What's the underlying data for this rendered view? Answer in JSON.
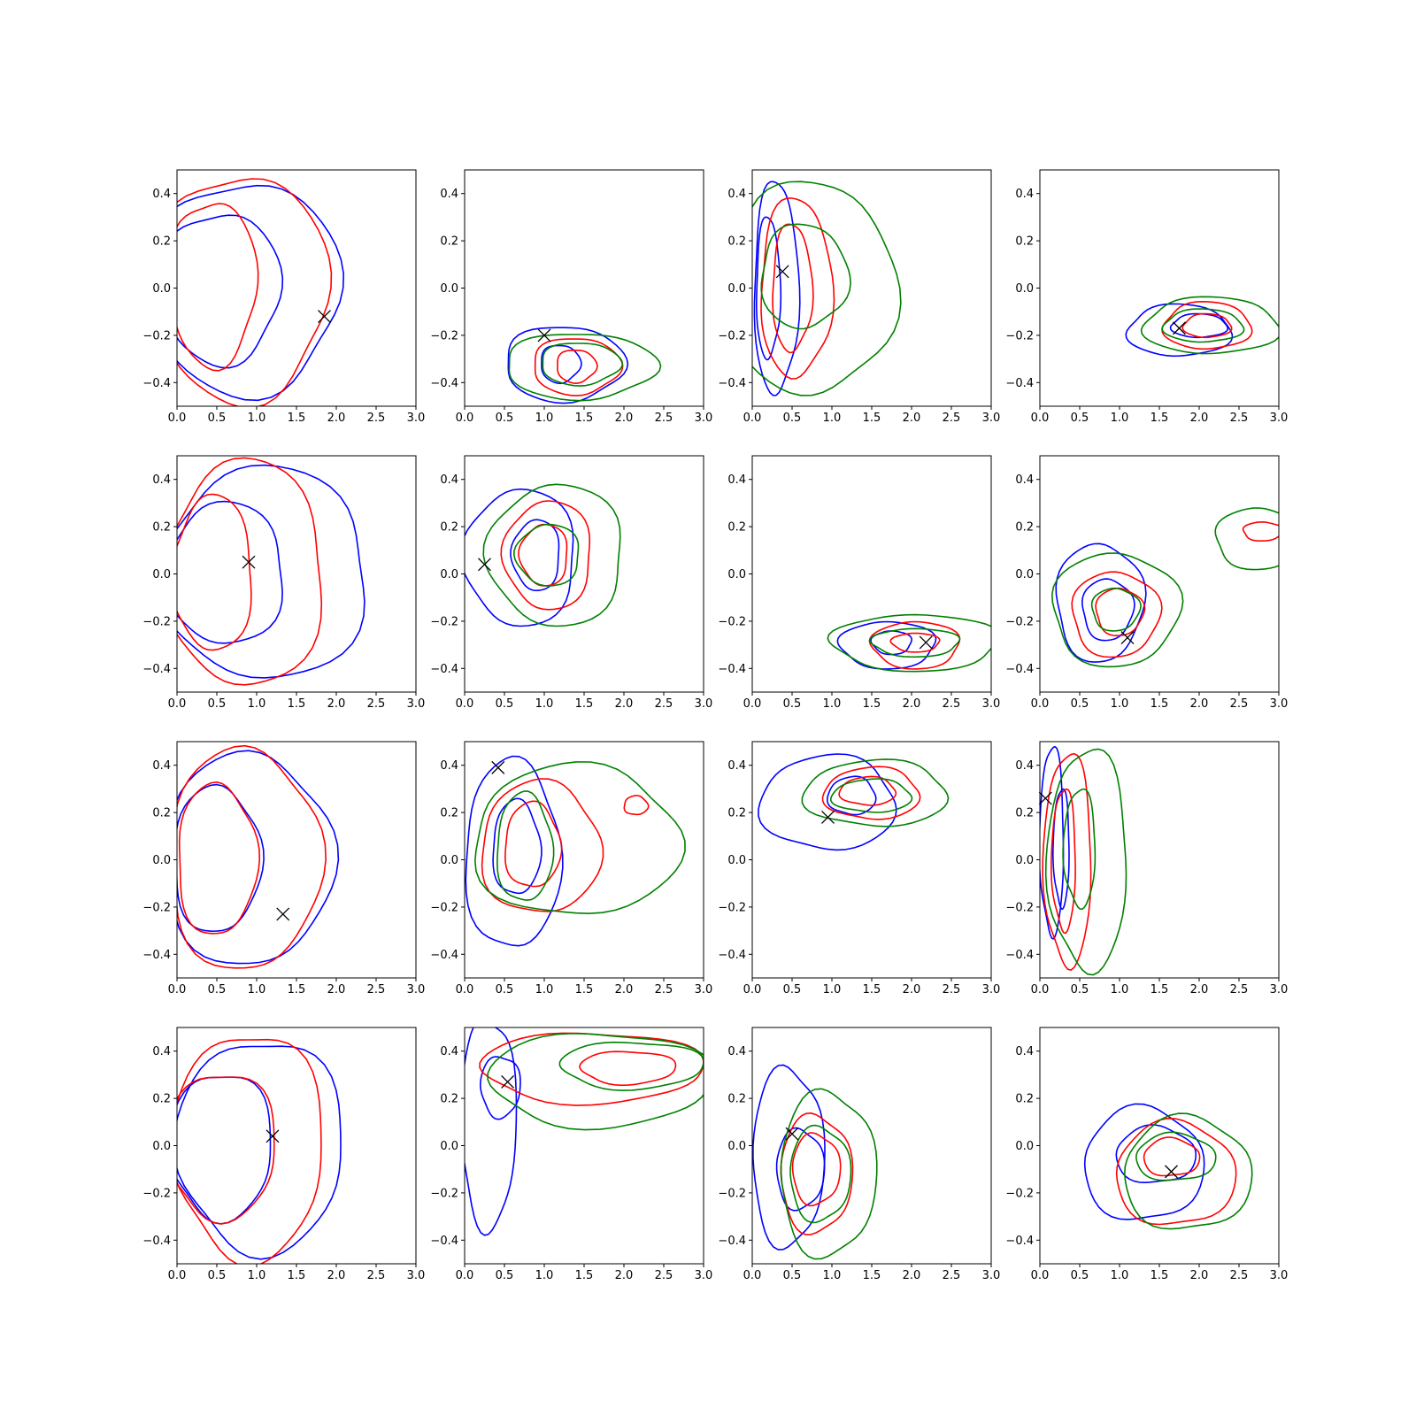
{
  "chart_data": {
    "type": "contour",
    "layout": "4x4 grid of density contour panels with an X marker in each",
    "xlim": [
      0.0,
      3.0
    ],
    "ylim": [
      -0.5,
      0.5
    ],
    "x_ticks": [
      "0.0",
      "0.5",
      "1.0",
      "1.5",
      "2.0",
      "2.5",
      "3.0"
    ],
    "y_ticks": [
      "0.4",
      "0.2",
      "0.0",
      "−0.2",
      "−0.4"
    ],
    "x_tick_values": [
      0,
      0.5,
      1,
      1.5,
      2,
      2.5,
      3
    ],
    "y_tick_values": [
      0.4,
      0.2,
      0,
      -0.2,
      -0.4
    ],
    "colors": {
      "blue": "#0000ff",
      "red": "#ff0000",
      "green": "#008000",
      "marker": "#000000"
    },
    "panels": [
      {
        "row": 1,
        "col": 1,
        "marker": [
          1.85,
          -0.12
        ],
        "contours": [
          {
            "color": "blue",
            "cx": 0.55,
            "cy": 0.0,
            "rx": 0.75,
            "ry": 0.32
          },
          {
            "color": "blue",
            "cx": 0.85,
            "cy": 0.0,
            "rx": 1.2,
            "ry": 0.45
          },
          {
            "color": "red",
            "cx": 0.45,
            "cy": 0.02,
            "rx": 0.55,
            "ry": 0.35
          },
          {
            "color": "red",
            "cx": 0.8,
            "cy": 0.0,
            "rx": 1.1,
            "ry": 0.48
          }
        ]
      },
      {
        "row": 1,
        "col": 2,
        "marker": [
          1.0,
          -0.2
        ],
        "contours": [
          {
            "color": "blue",
            "cx": 1.25,
            "cy": -0.32,
            "rx": 0.75,
            "ry": 0.16
          },
          {
            "color": "blue",
            "cx": 1.2,
            "cy": -0.32,
            "rx": 0.25,
            "ry": 0.08
          },
          {
            "color": "red",
            "cx": 1.4,
            "cy": -0.33,
            "rx": 0.55,
            "ry": 0.12
          },
          {
            "color": "red",
            "cx": 1.4,
            "cy": -0.33,
            "rx": 0.25,
            "ry": 0.07
          },
          {
            "color": "green",
            "cx": 1.45,
            "cy": -0.33,
            "rx": 0.95,
            "ry": 0.14
          },
          {
            "color": "green",
            "cx": 1.45,
            "cy": -0.32,
            "rx": 0.5,
            "ry": 0.09
          }
        ]
      },
      {
        "row": 1,
        "col": 3,
        "marker": [
          0.38,
          0.07
        ],
        "contours": [
          {
            "color": "blue",
            "cx": 0.3,
            "cy": 0.0,
            "rx": 0.28,
            "ry": 0.45
          },
          {
            "color": "blue",
            "cx": 0.2,
            "cy": 0.0,
            "rx": 0.15,
            "ry": 0.3
          },
          {
            "color": "red",
            "cx": 0.55,
            "cy": 0.0,
            "rx": 0.45,
            "ry": 0.38
          },
          {
            "color": "red",
            "cx": 0.5,
            "cy": 0.0,
            "rx": 0.25,
            "ry": 0.27
          },
          {
            "color": "green",
            "cx": 0.75,
            "cy": 0.0,
            "rx": 1.05,
            "ry": 0.45
          },
          {
            "color": "green",
            "cx": 0.65,
            "cy": 0.05,
            "rx": 0.55,
            "ry": 0.22
          }
        ]
      },
      {
        "row": 1,
        "col": 4,
        "marker": [
          1.75,
          -0.17
        ],
        "contours": [
          {
            "color": "blue",
            "cx": 1.75,
            "cy": -0.18,
            "rx": 0.65,
            "ry": 0.11
          },
          {
            "color": "blue",
            "cx": 2.0,
            "cy": -0.16,
            "rx": 0.35,
            "ry": 0.05
          },
          {
            "color": "red",
            "cx": 2.1,
            "cy": -0.16,
            "rx": 0.55,
            "ry": 0.1
          },
          {
            "color": "red",
            "cx": 2.1,
            "cy": -0.16,
            "rx": 0.3,
            "ry": 0.05
          },
          {
            "color": "green",
            "cx": 2.15,
            "cy": -0.16,
            "rx": 0.85,
            "ry": 0.12
          },
          {
            "color": "green",
            "cx": 2.05,
            "cy": -0.16,
            "rx": 0.5,
            "ry": 0.07
          }
        ]
      },
      {
        "row": 2,
        "col": 1,
        "marker": [
          0.9,
          0.05
        ],
        "contours": [
          {
            "color": "blue",
            "cx": 0.6,
            "cy": 0.0,
            "rx": 0.75,
            "ry": 0.3
          },
          {
            "color": "blue",
            "cx": 1.1,
            "cy": 0.0,
            "rx": 1.3,
            "ry": 0.45
          },
          {
            "color": "red",
            "cx": 0.45,
            "cy": 0.0,
            "rx": 0.5,
            "ry": 0.33
          },
          {
            "color": "red",
            "cx": 0.85,
            "cy": 0.0,
            "rx": 1.0,
            "ry": 0.48
          }
        ]
      },
      {
        "row": 2,
        "col": 2,
        "marker": [
          0.25,
          0.04
        ],
        "contours": [
          {
            "color": "blue",
            "cx": 0.7,
            "cy": 0.07,
            "rx": 0.7,
            "ry": 0.29
          },
          {
            "color": "blue",
            "cx": 0.9,
            "cy": 0.08,
            "rx": 0.3,
            "ry": 0.15
          },
          {
            "color": "red",
            "cx": 1.05,
            "cy": 0.08,
            "rx": 0.55,
            "ry": 0.23
          },
          {
            "color": "red",
            "cx": 1.0,
            "cy": 0.08,
            "rx": 0.3,
            "ry": 0.13
          },
          {
            "color": "green",
            "cx": 1.15,
            "cy": 0.08,
            "rx": 0.85,
            "ry": 0.3
          },
          {
            "color": "green",
            "cx": 1.05,
            "cy": 0.08,
            "rx": 0.4,
            "ry": 0.13
          }
        ]
      },
      {
        "row": 2,
        "col": 3,
        "marker": [
          2.18,
          -0.29
        ],
        "contours": [
          {
            "color": "blue",
            "cx": 1.7,
            "cy": -0.3,
            "rx": 0.6,
            "ry": 0.1
          },
          {
            "color": "blue",
            "cx": 1.75,
            "cy": -0.29,
            "rx": 0.25,
            "ry": 0.05
          },
          {
            "color": "red",
            "cx": 2.05,
            "cy": -0.3,
            "rx": 0.55,
            "ry": 0.1
          },
          {
            "color": "red",
            "cx": 2.05,
            "cy": -0.29,
            "rx": 0.3,
            "ry": 0.04
          },
          {
            "color": "green",
            "cx": 2.05,
            "cy": -0.29,
            "rx": 1.05,
            "ry": 0.12
          },
          {
            "color": "green",
            "cx": 2.05,
            "cy": -0.29,
            "rx": 0.55,
            "ry": 0.06
          }
        ]
      },
      {
        "row": 2,
        "col": 4,
        "marker": [
          1.1,
          -0.27
        ],
        "contours": [
          {
            "color": "blue",
            "cx": 0.75,
            "cy": -0.12,
            "rx": 0.55,
            "ry": 0.25
          },
          {
            "color": "blue",
            "cx": 0.85,
            "cy": -0.15,
            "rx": 0.32,
            "ry": 0.13
          },
          {
            "color": "red",
            "cx": 0.95,
            "cy": -0.17,
            "rx": 0.55,
            "ry": 0.18
          },
          {
            "color": "red",
            "cx": 1.0,
            "cy": -0.16,
            "rx": 0.3,
            "ry": 0.1
          },
          {
            "color": "green",
            "cx": 0.95,
            "cy": -0.15,
            "rx": 0.8,
            "ry": 0.24
          },
          {
            "color": "green",
            "cx": 0.95,
            "cy": -0.15,
            "rx": 0.3,
            "ry": 0.09
          },
          {
            "color": "green",
            "cx": 2.75,
            "cy": 0.15,
            "rx": 0.55,
            "ry": 0.13
          },
          {
            "color": "red",
            "cx": 2.8,
            "cy": 0.18,
            "rx": 0.25,
            "ry": 0.04
          }
        ]
      },
      {
        "row": 3,
        "col": 1,
        "marker": [
          1.33,
          -0.23
        ],
        "contours": [
          {
            "color": "blue",
            "cx": 0.5,
            "cy": 0.0,
            "rx": 0.55,
            "ry": 0.31
          },
          {
            "color": "blue",
            "cx": 0.9,
            "cy": 0.0,
            "rx": 1.05,
            "ry": 0.45
          },
          {
            "color": "red",
            "cx": 0.5,
            "cy": 0.0,
            "rx": 0.5,
            "ry": 0.32
          },
          {
            "color": "red",
            "cx": 0.85,
            "cy": 0.0,
            "rx": 0.95,
            "ry": 0.47
          }
        ]
      },
      {
        "row": 3,
        "col": 2,
        "marker": [
          0.42,
          0.39
        ],
        "contours": [
          {
            "color": "blue",
            "cx": 0.6,
            "cy": 0.02,
            "rx": 0.6,
            "ry": 0.4
          },
          {
            "color": "blue",
            "cx": 0.65,
            "cy": 0.05,
            "rx": 0.3,
            "ry": 0.2
          },
          {
            "color": "red",
            "cx": 0.95,
            "cy": 0.05,
            "rx": 0.75,
            "ry": 0.28
          },
          {
            "color": "red",
            "cx": 0.85,
            "cy": 0.06,
            "rx": 0.35,
            "ry": 0.18
          },
          {
            "color": "red",
            "cx": 2.15,
            "cy": 0.23,
            "rx": 0.15,
            "ry": 0.04
          },
          {
            "color": "green",
            "cx": 1.4,
            "cy": 0.08,
            "rx": 1.3,
            "ry": 0.32
          },
          {
            "color": "green",
            "cx": 0.75,
            "cy": 0.05,
            "rx": 0.35,
            "ry": 0.23
          }
        ]
      },
      {
        "row": 3,
        "col": 3,
        "marker": [
          0.95,
          0.18
        ],
        "contours": [
          {
            "color": "blue",
            "cx": 0.95,
            "cy": 0.24,
            "rx": 0.85,
            "ry": 0.2
          },
          {
            "color": "blue",
            "cx": 1.25,
            "cy": 0.27,
            "rx": 0.3,
            "ry": 0.08
          },
          {
            "color": "red",
            "cx": 1.5,
            "cy": 0.28,
            "rx": 0.6,
            "ry": 0.11
          },
          {
            "color": "red",
            "cx": 1.45,
            "cy": 0.29,
            "rx": 0.35,
            "ry": 0.06
          },
          {
            "color": "green",
            "cx": 1.55,
            "cy": 0.28,
            "rx": 0.9,
            "ry": 0.14
          },
          {
            "color": "green",
            "cx": 1.5,
            "cy": 0.27,
            "rx": 0.5,
            "ry": 0.07
          }
        ]
      },
      {
        "row": 3,
        "col": 4,
        "marker": [
          0.07,
          0.26
        ],
        "contours": [
          {
            "color": "blue",
            "cx": 0.15,
            "cy": 0.08,
            "rx": 0.15,
            "ry": 0.4
          },
          {
            "color": "blue",
            "cx": 0.27,
            "cy": 0.05,
            "rx": 0.1,
            "ry": 0.25
          },
          {
            "color": "red",
            "cx": 0.35,
            "cy": 0.0,
            "rx": 0.3,
            "ry": 0.45
          },
          {
            "color": "red",
            "cx": 0.3,
            "cy": 0.0,
            "rx": 0.15,
            "ry": 0.3
          },
          {
            "color": "green",
            "cx": 0.6,
            "cy": 0.0,
            "rx": 0.5,
            "ry": 0.47
          },
          {
            "color": "green",
            "cx": 0.5,
            "cy": 0.05,
            "rx": 0.2,
            "ry": 0.25
          }
        ]
      },
      {
        "row": 4,
        "col": 1,
        "marker": [
          1.2,
          0.04
        ],
        "contours": [
          {
            "color": "blue",
            "cx": 0.55,
            "cy": 0.0,
            "rx": 0.65,
            "ry": 0.31
          },
          {
            "color": "blue",
            "cx": 1.05,
            "cy": 0.0,
            "rx": 1.05,
            "ry": 0.45
          },
          {
            "color": "red",
            "cx": 0.55,
            "cy": 0.0,
            "rx": 0.7,
            "ry": 0.31
          },
          {
            "color": "red",
            "cx": 0.9,
            "cy": 0.0,
            "rx": 0.95,
            "ry": 0.48
          }
        ]
      },
      {
        "row": 4,
        "col": 2,
        "marker": [
          0.54,
          0.27
        ],
        "contours": [
          {
            "color": "blue",
            "cx": 0.3,
            "cy": 0.1,
            "rx": 0.35,
            "ry": 0.45
          },
          {
            "color": "blue",
            "cx": 0.45,
            "cy": 0.25,
            "rx": 0.25,
            "ry": 0.13
          },
          {
            "color": "red",
            "cx": 1.6,
            "cy": 0.33,
            "rx": 1.4,
            "ry": 0.15
          },
          {
            "color": "red",
            "cx": 2.05,
            "cy": 0.33,
            "rx": 0.6,
            "ry": 0.07
          },
          {
            "color": "green",
            "cx": 1.7,
            "cy": 0.28,
            "rx": 1.4,
            "ry": 0.2
          },
          {
            "color": "green",
            "cx": 2.1,
            "cy": 0.34,
            "rx": 0.9,
            "ry": 0.1
          }
        ]
      },
      {
        "row": 4,
        "col": 3,
        "marker": [
          0.5,
          0.05
        ],
        "contours": [
          {
            "color": "blue",
            "cx": 0.45,
            "cy": -0.05,
            "rx": 0.45,
            "ry": 0.38
          },
          {
            "color": "blue",
            "cx": 0.6,
            "cy": -0.1,
            "rx": 0.3,
            "ry": 0.17
          },
          {
            "color": "red",
            "cx": 0.8,
            "cy": -0.12,
            "rx": 0.45,
            "ry": 0.25
          },
          {
            "color": "red",
            "cx": 0.8,
            "cy": -0.1,
            "rx": 0.3,
            "ry": 0.15
          },
          {
            "color": "green",
            "cx": 0.95,
            "cy": -0.12,
            "rx": 0.6,
            "ry": 0.35
          },
          {
            "color": "green",
            "cx": 0.85,
            "cy": -0.12,
            "rx": 0.38,
            "ry": 0.2
          }
        ]
      },
      {
        "row": 4,
        "col": 4,
        "marker": [
          1.65,
          -0.11
        ],
        "contours": [
          {
            "color": "blue",
            "cx": 1.3,
            "cy": -0.08,
            "rx": 0.75,
            "ry": 0.24
          },
          {
            "color": "blue",
            "cx": 1.45,
            "cy": -0.04,
            "rx": 0.5,
            "ry": 0.12
          },
          {
            "color": "red",
            "cx": 1.7,
            "cy": -0.12,
            "rx": 0.75,
            "ry": 0.22
          },
          {
            "color": "red",
            "cx": 1.65,
            "cy": -0.05,
            "rx": 0.35,
            "ry": 0.08
          },
          {
            "color": "green",
            "cx": 1.85,
            "cy": -0.12,
            "rx": 0.8,
            "ry": 0.24
          },
          {
            "color": "green",
            "cx": 1.7,
            "cy": -0.05,
            "rx": 0.5,
            "ry": 0.1
          }
        ]
      }
    ]
  }
}
